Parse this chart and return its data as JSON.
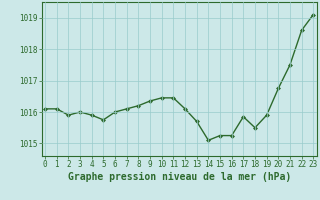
{
  "x": [
    0,
    1,
    2,
    3,
    4,
    5,
    6,
    7,
    8,
    9,
    10,
    11,
    12,
    13,
    14,
    15,
    16,
    17,
    18,
    19,
    20,
    21,
    22,
    23
  ],
  "y": [
    1016.1,
    1016.1,
    1015.9,
    1016.0,
    1015.9,
    1015.75,
    1016.0,
    1016.1,
    1016.2,
    1016.35,
    1016.45,
    1016.45,
    1016.1,
    1015.7,
    1015.1,
    1015.25,
    1015.25,
    1015.85,
    1015.5,
    1015.9,
    1016.75,
    1017.5,
    1018.6,
    1019.1
  ],
  "line_color": "#2d6a2d",
  "marker": "D",
  "marker_size": 2.0,
  "bg_color": "#cce8e8",
  "grid_color": "#99cccc",
  "axis_color": "#2d6a2d",
  "xlabel": "Graphe pression niveau de la mer (hPa)",
  "xlabel_fontsize": 7,
  "ytick_labels": [
    "1015",
    "1016",
    "1017",
    "1018",
    "1019"
  ],
  "ytick_vals": [
    1015,
    1016,
    1017,
    1018,
    1019
  ],
  "xtick_vals": [
    0,
    1,
    2,
    3,
    4,
    5,
    6,
    7,
    8,
    9,
    10,
    11,
    12,
    13,
    14,
    15,
    16,
    17,
    18,
    19,
    20,
    21,
    22,
    23
  ],
  "ylim": [
    1014.6,
    1019.5
  ],
  "xlim": [
    -0.3,
    23.3
  ],
  "tick_fontsize": 5.5,
  "line_width": 1.0
}
